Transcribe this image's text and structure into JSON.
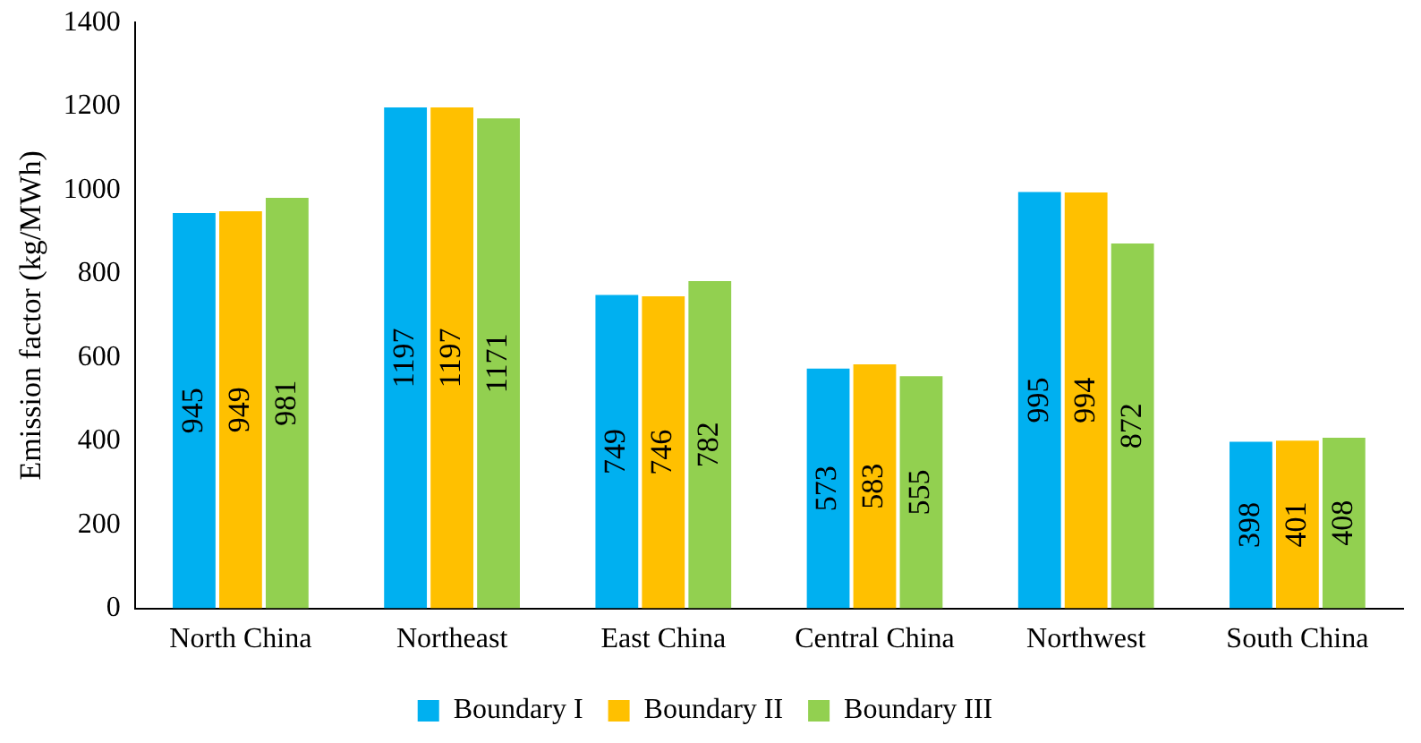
{
  "chart_data": {
    "type": "bar",
    "ylabel": "Emission factor (kg/MWh)",
    "categories": [
      "North China",
      "Northeast",
      "East China",
      "Central China",
      "Northwest",
      "South China"
    ],
    "series": [
      {
        "name": "Boundary I",
        "color": "#00b0f0",
        "values": [
          945,
          1197,
          749,
          573,
          995,
          398
        ]
      },
      {
        "name": "Boundary II",
        "color": "#ffc000",
        "values": [
          949,
          1197,
          746,
          583,
          994,
          401
        ]
      },
      {
        "name": "Boundary III",
        "color": "#92d050",
        "values": [
          981,
          1171,
          782,
          555,
          872,
          408
        ]
      }
    ],
    "ylim": [
      0,
      1400
    ],
    "yticks": [
      0,
      200,
      400,
      600,
      800,
      1000,
      1200,
      1400
    ],
    "grid": false,
    "legend": "bottom",
    "data_labels": true
  }
}
